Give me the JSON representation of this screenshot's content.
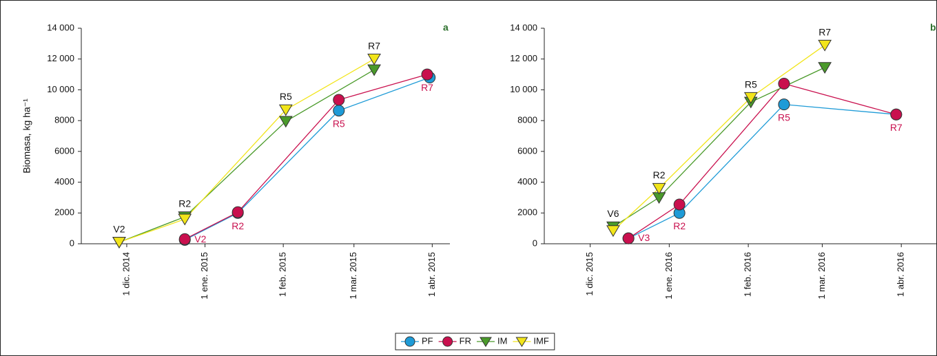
{
  "chart_data": [
    {
      "type": "line",
      "panel_label": "a",
      "ylabel": "Biomasa, kg ha⁻¹",
      "xlim": [
        "2014-11-13",
        "2015-04-08"
      ],
      "xticks": [
        {
          "value": "2014-12-01",
          "label": "1 dic. 2014"
        },
        {
          "value": "2015-01-01",
          "label": "1 ene. 2015"
        },
        {
          "value": "2015-02-01",
          "label": "1 feb. 2015"
        },
        {
          "value": "2015-03-01",
          "label": "1 mar. 2015"
        },
        {
          "value": "2015-04-01",
          "label": "1 abr. 2015"
        }
      ],
      "ylim": [
        0,
        14000
      ],
      "yticks": [
        0,
        2000,
        4000,
        6000,
        8000,
        {
          "value": 10000,
          "label": "10 000"
        },
        {
          "value": 12000,
          "label": "12 000"
        },
        {
          "value": 14000,
          "label": "14 000"
        }
      ],
      "series": [
        {
          "name": "PF",
          "color": "#1e9bd7",
          "marker": "circle",
          "x": [
            "2014-12-24",
            "2015-01-14",
            "2015-02-23",
            "2015-03-31"
          ],
          "values": [
            250,
            2000,
            8650,
            10800
          ]
        },
        {
          "name": "FR",
          "color": "#c9104e",
          "marker": "circle",
          "x": [
            "2014-12-24",
            "2015-01-14",
            "2015-02-23",
            "2015-03-30"
          ],
          "values": [
            300,
            2050,
            9350,
            11000
          ],
          "point_labels": [
            "V2",
            "R2",
            "R5",
            "R7"
          ]
        },
        {
          "name": "IM",
          "color": "#4a9a2a",
          "marker": "triangle",
          "x": [
            "2014-11-28",
            "2014-12-24",
            "2015-02-02",
            "2015-03-09"
          ],
          "values": [
            100,
            1750,
            7950,
            11300
          ]
        },
        {
          "name": "IMF",
          "color": "#f2e51a",
          "marker": "triangle",
          "x": [
            "2014-11-28",
            "2014-12-24",
            "2015-02-02",
            "2015-03-09"
          ],
          "values": [
            100,
            1600,
            8700,
            12000
          ],
          "point_labels": [
            "V2",
            "R2",
            "R5",
            "R7"
          ]
        }
      ]
    },
    {
      "type": "line",
      "panel_label": "b",
      "xlim": [
        "2015-11-13",
        "2016-04-15"
      ],
      "xticks": [
        {
          "value": "2015-12-01",
          "label": "1 dic. 2015"
        },
        {
          "value": "2016-01-01",
          "label": "1 ene. 2016"
        },
        {
          "value": "2016-02-01",
          "label": "1 feb. 2016"
        },
        {
          "value": "2016-03-01",
          "label": "1 mar. 2016"
        },
        {
          "value": "2016-04-01",
          "label": "1 abr. 2016"
        }
      ],
      "ylim": [
        0,
        14000
      ],
      "yticks": [
        0,
        2000,
        4000,
        6000,
        8000,
        {
          "value": 10000,
          "label": "10 000"
        },
        {
          "value": 12000,
          "label": "12 000"
        },
        {
          "value": 14000,
          "label": "14 000"
        }
      ],
      "series": [
        {
          "name": "PF",
          "color": "#1e9bd7",
          "marker": "circle",
          "x": [
            "2015-12-16",
            "2016-01-05",
            "2016-02-15",
            "2016-03-30"
          ],
          "values": [
            350,
            2000,
            9050,
            8400
          ]
        },
        {
          "name": "FR",
          "color": "#c9104e",
          "marker": "circle",
          "x": [
            "2015-12-16",
            "2016-01-05",
            "2016-02-15",
            "2016-03-30"
          ],
          "values": [
            350,
            2550,
            10400,
            8400
          ],
          "point_labels": [
            "V3",
            "R2",
            "R5",
            "R7"
          ]
        },
        {
          "name": "IM",
          "color": "#4a9a2a",
          "marker": "triangle",
          "x": [
            "2015-12-10",
            "2015-12-28",
            "2016-02-02",
            "2016-03-02"
          ],
          "values": [
            1100,
            3000,
            9200,
            11450
          ]
        },
        {
          "name": "IMF",
          "color": "#f2e51a",
          "marker": "triangle",
          "x": [
            "2015-12-10",
            "2015-12-28",
            "2016-02-02",
            "2016-03-02"
          ],
          "values": [
            850,
            3600,
            9500,
            12900
          ],
          "point_labels": [
            "V6",
            "R2",
            "R5",
            "R7"
          ]
        }
      ]
    }
  ]
}
